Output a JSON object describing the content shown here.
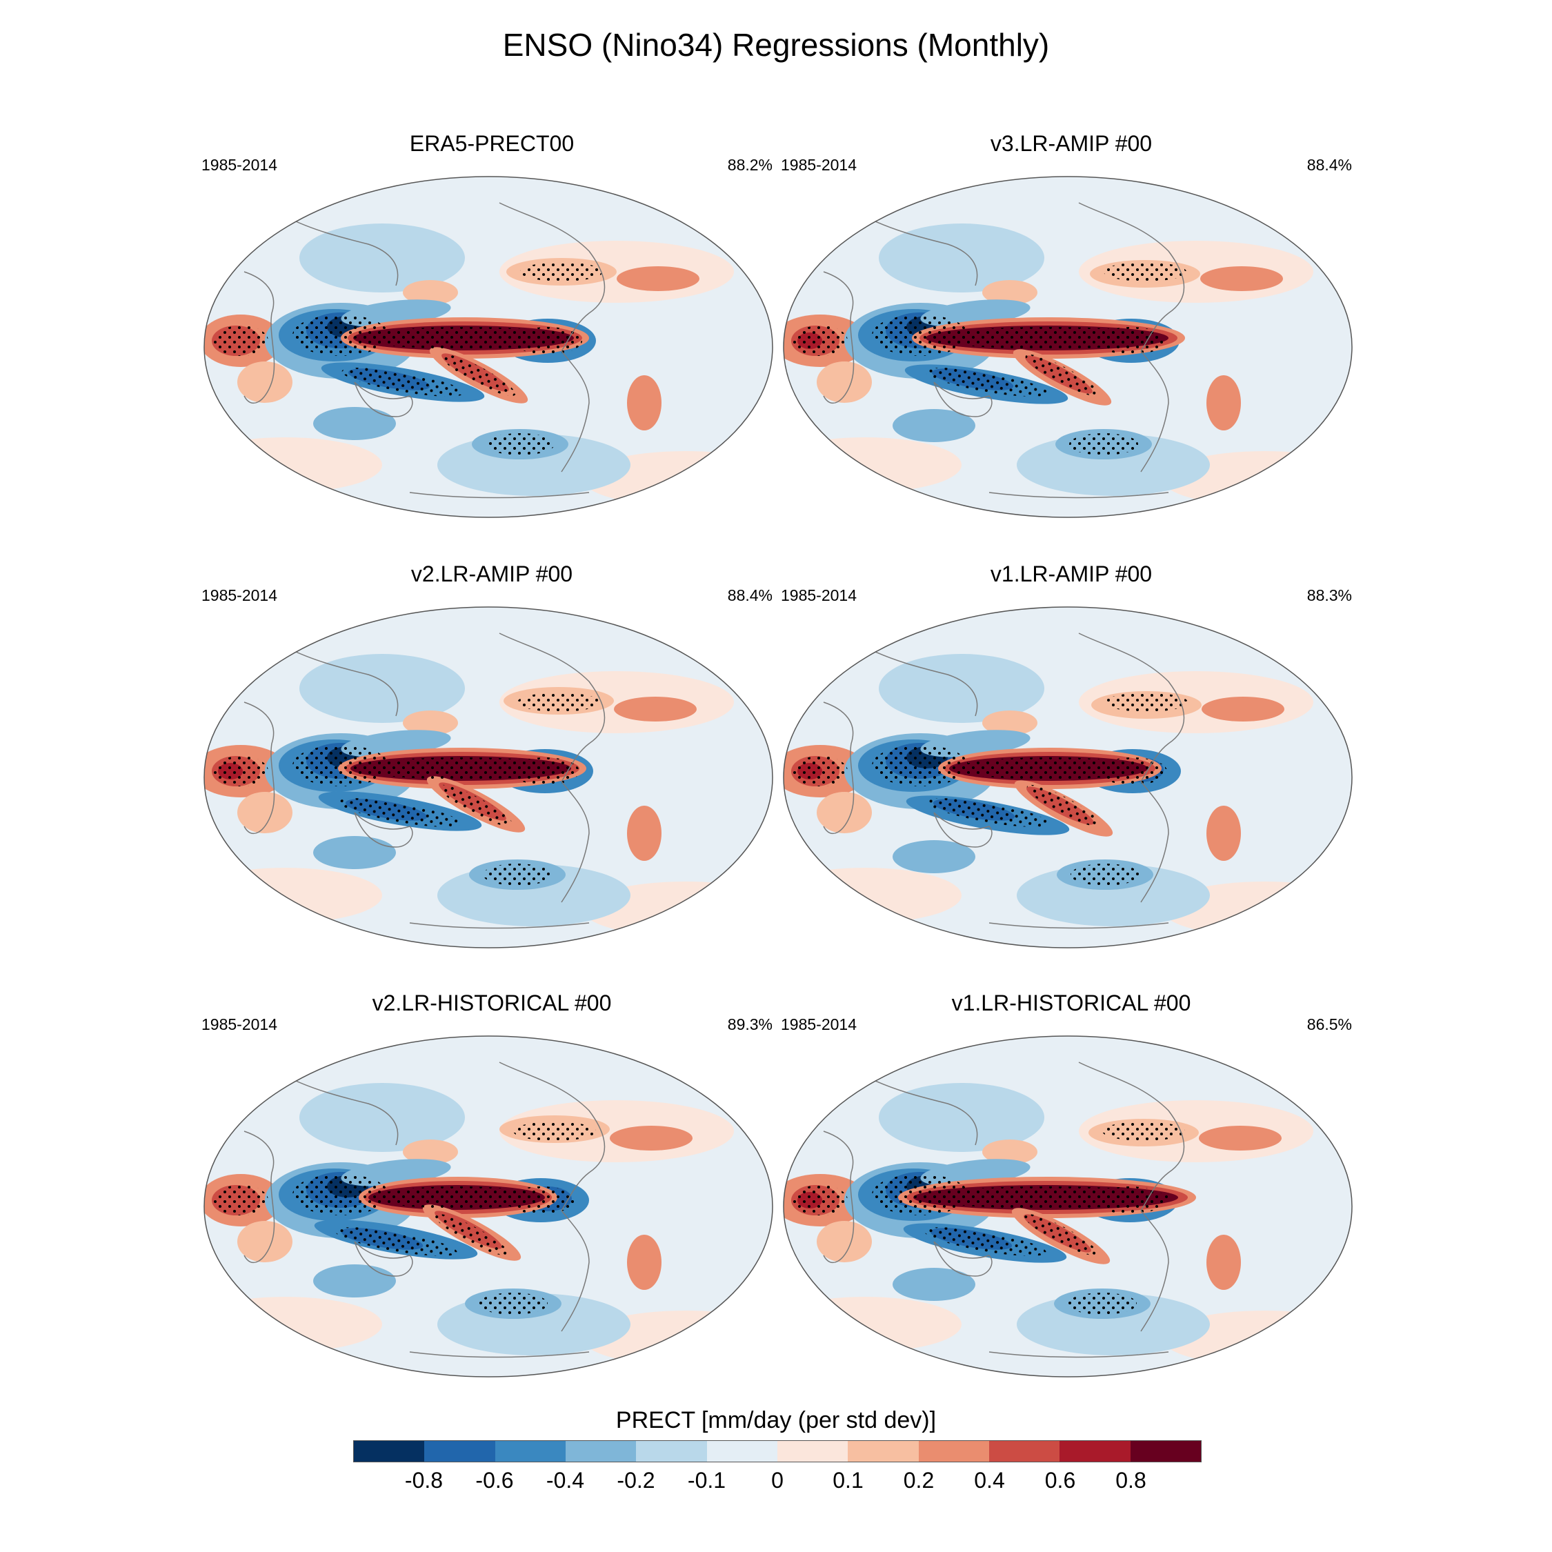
{
  "figure": {
    "title": "ENSO (Nino34) Regressions (Monthly)"
  },
  "panels": [
    {
      "title": "ERA5-PRECT00",
      "period": "1985-2014",
      "percent": "88.2%"
    },
    {
      "title": "v3.LR-AMIP  #00",
      "period": "1985-2014",
      "percent": "88.4%"
    },
    {
      "title": "v2.LR-AMIP  #00",
      "period": "1985-2014",
      "percent": "88.4%"
    },
    {
      "title": "v1.LR-AMIP  #00",
      "period": "1985-2014",
      "percent": "88.3%"
    },
    {
      "title": "v2.LR-HISTORICAL  #00",
      "period": "1985-2014",
      "percent": "89.3%"
    },
    {
      "title": "v1.LR-HISTORICAL  #00",
      "period": "1985-2014",
      "percent": "86.5%"
    }
  ],
  "colorbar": {
    "title": "PRECT [mm/day (per std dev)]",
    "tick_labels": [
      "-0.8",
      "-0.6",
      "-0.4",
      "-0.2",
      "-0.1",
      "0",
      "0.1",
      "0.2",
      "0.4",
      "0.6",
      "0.8"
    ],
    "colors": [
      "#053061",
      "#2166ac",
      "#3a88c0",
      "#7fb6d8",
      "#b9d8ea",
      "#e4eef5",
      "#fbe6dc",
      "#f7bfa1",
      "#ea8d6f",
      "#cc4c44",
      "#a91a2a",
      "#67001f"
    ]
  },
  "map_style": {
    "background": "#e7eff5",
    "land_outline": "#7a7a7a",
    "stipple": "#000000"
  }
}
